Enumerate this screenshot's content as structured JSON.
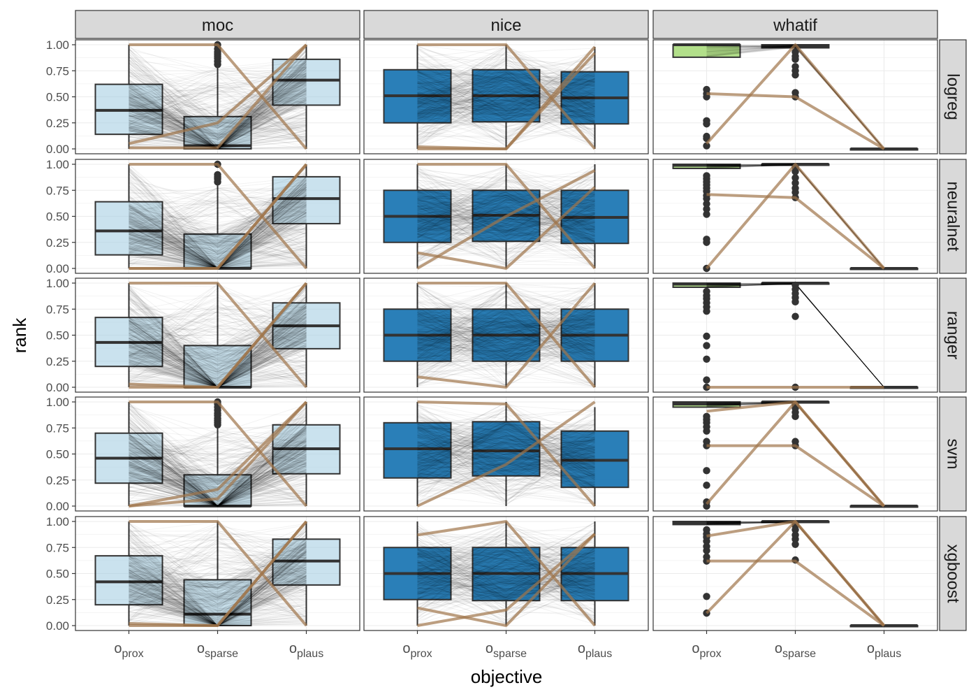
{
  "chart_data": {
    "type": "boxplot",
    "xlabel": "objective",
    "ylabel": "rank",
    "ylim": [
      0,
      1
    ],
    "y_ticks": [
      "0.00",
      "0.25",
      "0.50",
      "0.75",
      "1.00"
    ],
    "columns": [
      "moc",
      "nice",
      "whatif"
    ],
    "rows": [
      "logreg",
      "neuralnet",
      "ranger",
      "svm",
      "xgboost"
    ],
    "categories": [
      {
        "main": "o",
        "sub": "prox"
      },
      {
        "main": "o",
        "sub": "sparse"
      },
      {
        "main": "o",
        "sub": "plaus"
      }
    ],
    "colors": {
      "moc": "#a6cee3",
      "nice": "#1f78b4",
      "whatif": "#b2df8a",
      "highlight_lines": "#a0754a",
      "box_stroke": "#333333",
      "background_lines": "#000000"
    },
    "boxes": {
      "moc": {
        "logreg": [
          [
            0.0,
            0.14,
            0.37,
            0.62,
            1.0
          ],
          [
            0.0,
            0.0,
            0.03,
            0.31,
            0.78
          ],
          [
            0.0,
            0.42,
            0.66,
            0.86,
            1.0
          ]
        ],
        "neuralnet": [
          [
            0.0,
            0.13,
            0.36,
            0.64,
            1.0
          ],
          [
            0.0,
            0.0,
            0.0,
            0.33,
            0.8
          ],
          [
            0.0,
            0.43,
            0.67,
            0.88,
            1.0
          ]
        ],
        "ranger": [
          [
            0.0,
            0.2,
            0.43,
            0.67,
            1.0
          ],
          [
            0.0,
            0.0,
            0.0,
            0.4,
            1.0
          ],
          [
            0.0,
            0.37,
            0.59,
            0.81,
            1.0
          ]
        ],
        "svm": [
          [
            0.0,
            0.22,
            0.46,
            0.7,
            1.0
          ],
          [
            0.0,
            0.0,
            0.0,
            0.3,
            0.75
          ],
          [
            0.0,
            0.31,
            0.55,
            0.78,
            1.0
          ]
        ],
        "xgboost": [
          [
            0.0,
            0.2,
            0.42,
            0.67,
            1.0
          ],
          [
            0.0,
            0.0,
            0.11,
            0.44,
            1.0
          ],
          [
            0.0,
            0.39,
            0.62,
            0.83,
            1.0
          ]
        ]
      },
      "nice": {
        "logreg": [
          [
            0.0,
            0.25,
            0.51,
            0.76,
            1.0
          ],
          [
            0.0,
            0.26,
            0.51,
            0.76,
            1.0
          ],
          [
            0.0,
            0.24,
            0.49,
            0.74,
            0.98
          ]
        ],
        "neuralnet": [
          [
            0.0,
            0.25,
            0.5,
            0.75,
            1.0
          ],
          [
            0.0,
            0.26,
            0.51,
            0.75,
            1.0
          ],
          [
            0.0,
            0.24,
            0.49,
            0.75,
            1.0
          ]
        ],
        "ranger": [
          [
            0.0,
            0.25,
            0.5,
            0.75,
            1.0
          ],
          [
            0.0,
            0.25,
            0.5,
            0.75,
            1.0
          ],
          [
            0.0,
            0.25,
            0.5,
            0.75,
            1.0
          ]
        ],
        "svm": [
          [
            0.0,
            0.27,
            0.55,
            0.8,
            1.0
          ],
          [
            0.0,
            0.29,
            0.53,
            0.81,
            1.0
          ],
          [
            0.0,
            0.18,
            0.44,
            0.72,
            0.95
          ]
        ],
        "xgboost": [
          [
            0.0,
            0.25,
            0.5,
            0.75,
            1.0
          ],
          [
            0.0,
            0.24,
            0.5,
            0.75,
            1.0
          ],
          [
            0.0,
            0.24,
            0.5,
            0.75,
            1.0
          ]
        ]
      },
      "whatif": {
        "logreg": [
          [
            0.88,
            0.88,
            1.0,
            1.0,
            1.0
          ],
          [
            0.97,
            0.97,
            0.99,
            1.0,
            1.0
          ],
          [
            0.0,
            0.0,
            0.0,
            0.0,
            0.0
          ]
        ],
        "neuralnet": [
          [
            0.96,
            0.96,
            0.99,
            1.0,
            1.0
          ],
          [
            0.99,
            0.99,
            1.0,
            1.0,
            1.0
          ],
          [
            0.0,
            0.0,
            0.0,
            0.0,
            0.0
          ]
        ],
        "ranger": [
          [
            0.96,
            0.96,
            0.99,
            1.0,
            1.0
          ],
          [
            0.99,
            0.99,
            1.0,
            1.0,
            1.0
          ],
          [
            0.0,
            0.0,
            0.0,
            0.0,
            0.0
          ]
        ],
        "svm": [
          [
            0.95,
            0.95,
            0.98,
            1.0,
            1.0
          ],
          [
            0.99,
            0.99,
            1.0,
            1.0,
            1.0
          ],
          [
            0.0,
            0.0,
            0.0,
            0.0,
            0.0
          ]
        ],
        "xgboost": [
          [
            0.97,
            0.97,
            0.99,
            1.0,
            1.0
          ],
          [
            0.99,
            0.99,
            1.0,
            1.0,
            1.0
          ],
          [
            0.0,
            0.0,
            0.0,
            0.0,
            0.0
          ]
        ]
      }
    },
    "outliers": {
      "moc": {
        "logreg": [
          [],
          [
            0.81,
            0.84,
            0.87,
            0.89,
            0.91,
            0.93,
            0.96,
            1.0
          ],
          []
        ],
        "neuralnet": [
          [],
          [
            0.83,
            0.86,
            0.88,
            0.9,
            1.0
          ],
          []
        ],
        "ranger": [
          [],
          [],
          []
        ],
        "svm": [
          [],
          [
            0.78,
            0.8,
            0.82,
            0.84,
            0.87,
            0.89,
            0.92,
            0.95,
            0.98,
            1.0
          ],
          []
        ],
        "xgboost": [
          [],
          [],
          []
        ]
      },
      "whatif": {
        "logreg": [
          [
            0.03,
            0.1,
            0.12,
            0.24,
            0.27,
            0.5,
            0.53,
            0.57
          ],
          [
            0.5,
            0.54,
            0.71,
            0.75,
            0.79,
            0.86,
            0.89,
            0.93
          ],
          []
        ],
        "neuralnet": [
          [
            0.0,
            0.25,
            0.28,
            0.52,
            0.57,
            0.62,
            0.67,
            0.7,
            0.74,
            0.77,
            0.8,
            0.83,
            0.86,
            0.89
          ],
          [
            0.68,
            0.73,
            0.77,
            0.82,
            0.87,
            0.93,
            0.97
          ],
          []
        ],
        "ranger": [
          [
            0.0,
            0.07,
            0.27,
            0.4,
            0.49,
            0.73,
            0.77,
            0.81,
            0.85,
            0.88,
            0.92
          ],
          [
            0.0,
            0.68,
            0.82,
            0.86,
            0.9,
            0.94,
            0.98
          ],
          []
        ],
        "svm": [
          [
            0.0,
            0.04,
            0.2,
            0.34,
            0.58,
            0.62,
            0.72,
            0.76,
            0.8,
            0.83,
            0.86
          ],
          [
            0.58,
            0.62,
            0.86,
            0.9,
            0.94,
            0.97
          ],
          []
        ],
        "xgboost": [
          [
            0.12,
            0.28,
            0.62,
            0.66,
            0.72,
            0.76,
            0.81,
            0.85,
            0.88,
            0.92
          ],
          [
            0.63,
            0.78,
            0.83,
            0.87,
            0.92,
            0.96
          ],
          []
        ]
      }
    },
    "highlights": {
      "moc": {
        "logreg": [
          [
            0.01,
            0.01,
            1.0
          ],
          [
            1.0,
            1.0,
            0.0
          ],
          [
            0.05,
            0.25,
            1.0
          ]
        ],
        "neuralnet": [
          [
            0.0,
            0.0,
            1.0
          ],
          [
            1.0,
            1.0,
            0.0
          ],
          [
            0.0,
            0.0,
            1.0
          ]
        ],
        "ranger": [
          [
            0.0,
            0.0,
            1.0
          ],
          [
            1.0,
            1.0,
            0.0
          ],
          [
            0.03,
            0.0,
            1.0
          ]
        ],
        "svm": [
          [
            0.0,
            0.07,
            1.0
          ],
          [
            1.0,
            1.0,
            0.0
          ],
          [
            0.0,
            0.16,
            1.0
          ]
        ],
        "xgboost": [
          [
            0.0,
            0.0,
            1.0
          ],
          [
            1.0,
            1.0,
            0.0
          ],
          [
            0.02,
            0.0,
            1.0
          ]
        ]
      },
      "nice": {
        "logreg": [
          [
            0.02,
            0.0,
            0.98
          ],
          [
            1.0,
            1.0,
            0.0
          ],
          [
            0.0,
            0.0,
            0.92
          ]
        ],
        "neuralnet": [
          [
            0.0,
            0.5,
            0.94
          ],
          [
            1.0,
            1.0,
            0.0
          ],
          [
            0.15,
            0.0,
            0.78
          ]
        ],
        "ranger": [
          [
            0.1,
            0.0,
            1.0
          ],
          [
            1.0,
            1.0,
            0.0
          ]
        ],
        "svm": [
          [
            0.0,
            0.4,
            1.0
          ],
          [
            1.0,
            0.98,
            0.0
          ]
        ],
        "xgboost": [
          [
            0.87,
            1.0,
            0.0
          ],
          [
            0.17,
            0.0,
            0.88
          ],
          [
            0.0,
            0.15,
            0.88
          ]
        ]
      },
      "whatif": {
        "logreg": [
          [
            0.05,
            1.0,
            0.0
          ],
          [
            0.53,
            0.5,
            0.0
          ]
        ],
        "neuralnet": [
          [
            0.0,
            1.0,
            0.0
          ],
          [
            0.71,
            0.68,
            0.0
          ]
        ],
        "ranger": [
          [
            0.0,
            0.0,
            0.0
          ]
        ],
        "svm": [
          [
            0.02,
            1.0,
            0.0
          ],
          [
            0.58,
            0.58,
            0.0
          ],
          [
            0.91,
            1.0,
            0.0
          ]
        ],
        "xgboost": [
          [
            0.12,
            1.0,
            0.0
          ],
          [
            0.62,
            0.62,
            0.0
          ],
          [
            0.86,
            1.0,
            0.0
          ]
        ]
      }
    },
    "background_lines": {
      "moc": {
        "count": 420,
        "opacity": 0.05
      },
      "nice": {
        "count": 320,
        "opacity": 0.05
      },
      "whatif": {
        "count": 80,
        "opacity": 0.04
      }
    }
  }
}
